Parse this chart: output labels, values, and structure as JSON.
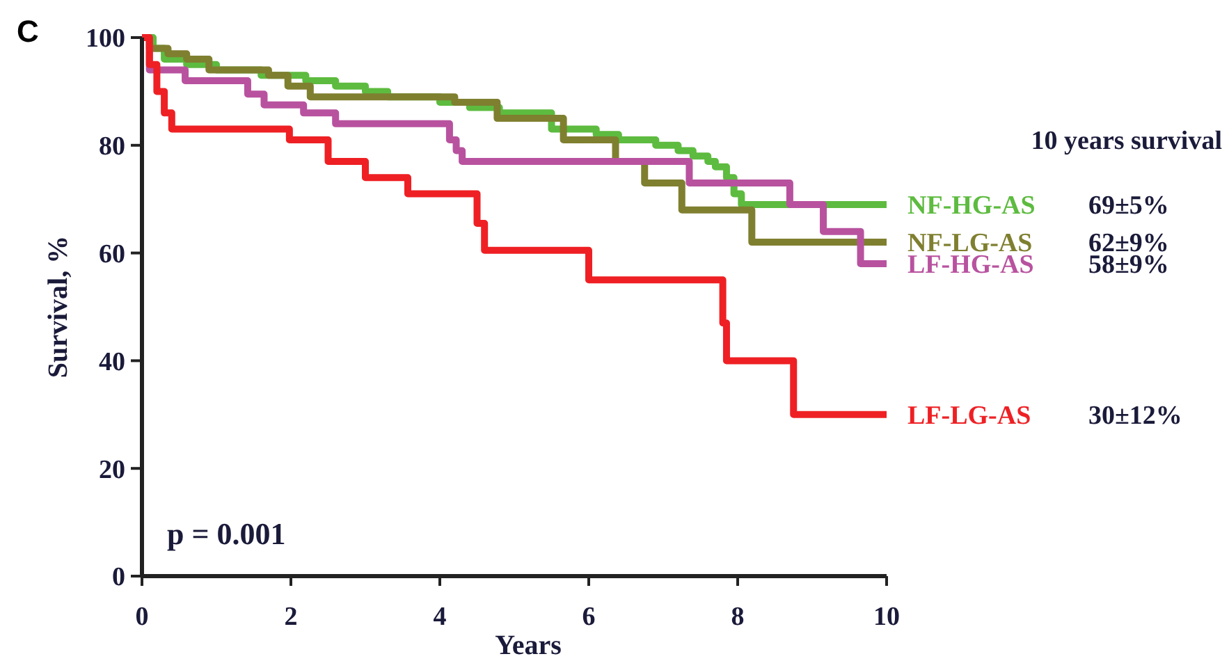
{
  "chart_data": {
    "type": "step",
    "title": "C",
    "xlabel": "Years",
    "ylabel": "Survival, %",
    "legend_title": "10 years survival",
    "legend": "right",
    "xlim": [
      0,
      10
    ],
    "ylim": [
      0,
      100
    ],
    "xticks": [
      0,
      2,
      4,
      6,
      8,
      10
    ],
    "yticks": [
      0,
      20,
      40,
      60,
      80,
      100
    ],
    "grid": false,
    "marker": "none",
    "line_style": "solid",
    "series": [
      {
        "name": "NF-HG-AS",
        "color": "#5dbb3f",
        "x": [
          0,
          0.15,
          0.3,
          0.6,
          1.0,
          1.6,
          2.2,
          2.6,
          3.0,
          3.3,
          4.0,
          4.4,
          4.8,
          5.5,
          6.1,
          6.4,
          6.9,
          7.2,
          7.4,
          7.6,
          7.7,
          7.85,
          7.95,
          8.05,
          10
        ],
        "values": [
          100,
          98,
          96,
          95,
          94,
          93,
          92,
          91,
          90,
          89,
          88,
          87,
          86,
          83,
          82,
          81,
          80,
          79,
          78,
          77,
          76,
          74,
          71,
          69,
          69
        ]
      },
      {
        "name": "NF-LG-AS",
        "color": "#7f7f30",
        "x": [
          0,
          0.1,
          0.35,
          0.6,
          0.9,
          1.7,
          1.96,
          2.26,
          4.2,
          4.77,
          5.66,
          6.36,
          6.75,
          7.25,
          8.19,
          10
        ],
        "values": [
          100,
          98,
          97,
          96,
          94,
          93,
          91,
          89,
          88,
          85,
          81,
          77,
          73,
          68,
          62,
          62
        ]
      },
      {
        "name": "LF-HG-AS",
        "color": "#b8529f",
        "x": [
          0,
          0.1,
          0.58,
          1.42,
          1.64,
          2.17,
          2.6,
          4.13,
          4.22,
          4.3,
          7.35,
          8.7,
          9.15,
          9.65,
          10
        ],
        "values": [
          100,
          94,
          92,
          89.5,
          87.5,
          86,
          84,
          81,
          79,
          77,
          73,
          69,
          64,
          58,
          58
        ]
      },
      {
        "name": "LF-LG-AS",
        "color": "#ee2024",
        "x": [
          0,
          0.1,
          0.2,
          0.3,
          0.4,
          1.98,
          2.5,
          3.0,
          3.57,
          4.5,
          4.6,
          6.0,
          7.8,
          7.85,
          8.75,
          10
        ],
        "values": [
          100,
          95,
          90,
          86,
          83,
          81,
          77,
          74,
          71,
          65.5,
          60.5,
          55,
          47,
          40,
          30,
          30
        ]
      }
    ],
    "annotations": [
      "p = 0.001",
      "69±5%",
      "62±9%",
      "58±9%",
      "30±12%"
    ]
  }
}
